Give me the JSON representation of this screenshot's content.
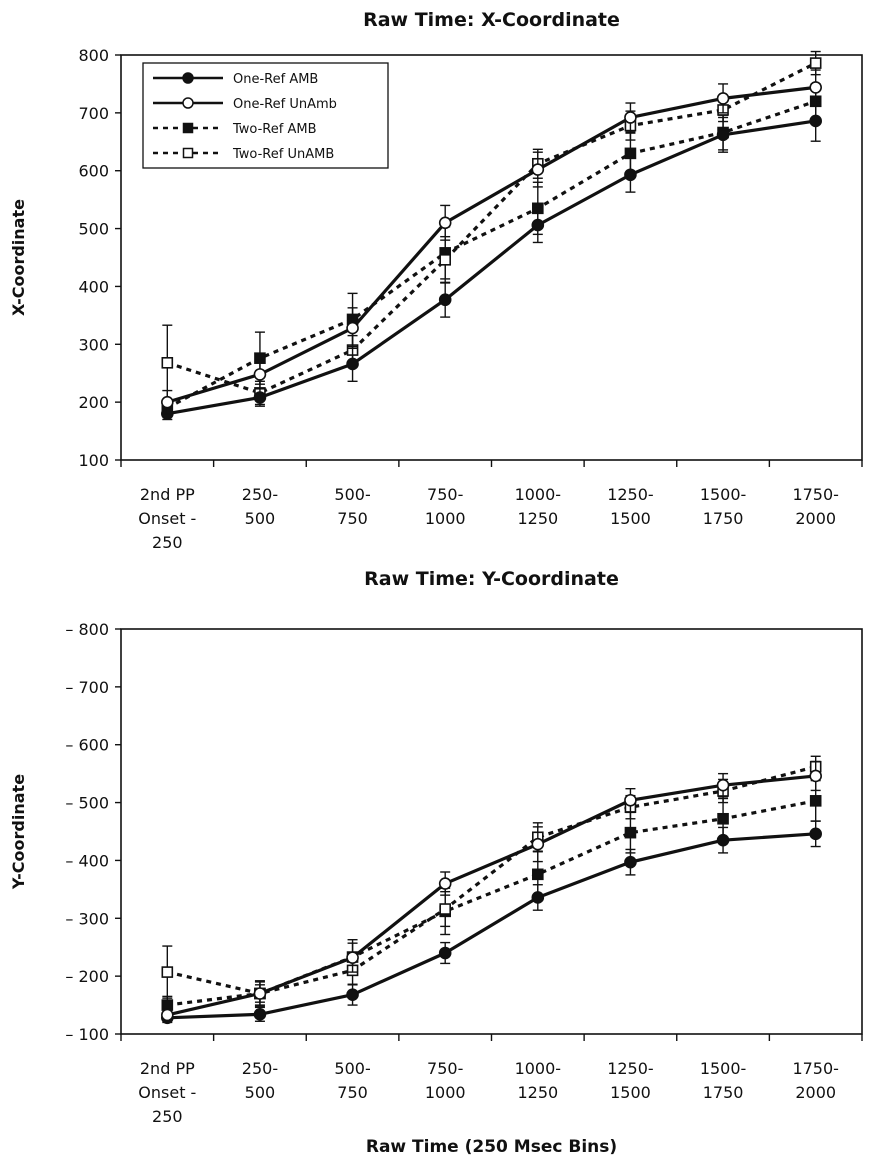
{
  "chart_data": [
    {
      "type": "line",
      "title": "Raw Time: X-Coordinate",
      "ylabel": "X-Coordinate",
      "xlabel": "",
      "ylim": [
        100,
        800
      ],
      "yticks": [
        "100",
        "200",
        "300",
        "400",
        "500",
        "600",
        "700",
        "800"
      ],
      "categories": [
        [
          "2nd PP",
          "Onset -",
          "250"
        ],
        [
          "250-",
          "500"
        ],
        [
          "500-",
          "750"
        ],
        [
          "750-",
          "1000"
        ],
        [
          "1000-",
          "1250"
        ],
        [
          "1250-",
          "1500"
        ],
        [
          "1500-",
          "1750"
        ],
        [
          "1750-",
          "2000"
        ]
      ],
      "legend_position": "top-left",
      "grid": false,
      "series": [
        {
          "name": "One-Ref AMB",
          "style": "solid",
          "marker": "filled-circle",
          "values": [
            180,
            208,
            266,
            377,
            506,
            593,
            662,
            686
          ],
          "error": [
            10,
            15,
            30,
            30,
            30,
            30,
            30,
            35
          ]
        },
        {
          "name": "One-Ref UnAmb",
          "style": "solid",
          "marker": "open-circle",
          "values": [
            200,
            248,
            328,
            510,
            602,
            692,
            725,
            744
          ],
          "error": [
            20,
            25,
            35,
            30,
            30,
            25,
            25,
            30
          ]
        },
        {
          "name": "Two-Ref AMB",
          "style": "dotted",
          "marker": "filled-square",
          "values": [
            190,
            276,
            343,
            458,
            535,
            630,
            666,
            720
          ],
          "error": [
            15,
            45,
            45,
            45,
            45,
            35,
            30,
            30
          ]
        },
        {
          "name": "Two-Ref UnAMB",
          "style": "dotted",
          "marker": "open-square",
          "values": [
            268,
            216,
            290,
            446,
            612,
            678,
            705,
            786
          ],
          "error": [
            65,
            20,
            25,
            40,
            25,
            25,
            20,
            20
          ]
        }
      ]
    },
    {
      "type": "line",
      "title": "Raw Time: Y-Coordinate",
      "ylabel": "Y-Coordinate",
      "xlabel": "Raw Time (250 Msec Bins)",
      "ylim": [
        100,
        800
      ],
      "yticks": [
        "– 100",
        "– 200",
        "– 300",
        "– 400",
        "– 500",
        "– 600",
        "– 700",
        "– 800"
      ],
      "categories": [
        [
          "2nd PP",
          "Onset -",
          "250"
        ],
        [
          "250-",
          "500"
        ],
        [
          "500-",
          "750"
        ],
        [
          "750-",
          "1000"
        ],
        [
          "1000-",
          "1250"
        ],
        [
          "1250-",
          "1500"
        ],
        [
          "1500-",
          "1750"
        ],
        [
          "1750-",
          "2000"
        ]
      ],
      "grid": false,
      "series": [
        {
          "name": "One-Ref AMB",
          "style": "solid",
          "marker": "filled-circle",
          "values": [
            128,
            134,
            168,
            240,
            336,
            397,
            435,
            446
          ],
          "error": [
            8,
            12,
            18,
            18,
            22,
            22,
            22,
            22
          ]
        },
        {
          "name": "One-Ref UnAmb",
          "style": "solid",
          "marker": "open-circle",
          "values": [
            133,
            170,
            232,
            360,
            428,
            504,
            530,
            546
          ],
          "error": [
            10,
            15,
            25,
            20,
            30,
            20,
            20,
            25
          ]
        },
        {
          "name": "Two-Ref AMB",
          "style": "dotted",
          "marker": "filled-square",
          "values": [
            150,
            170,
            233,
            312,
            376,
            448,
            472,
            503
          ],
          "error": [
            15,
            20,
            30,
            40,
            40,
            35,
            35,
            35
          ]
        },
        {
          "name": "Two-Ref UnAMB",
          "style": "dotted",
          "marker": "open-square",
          "values": [
            207,
            170,
            210,
            316,
            440,
            492,
            520,
            562
          ],
          "error": [
            45,
            22,
            25,
            30,
            25,
            20,
            20,
            18
          ]
        }
      ]
    }
  ]
}
